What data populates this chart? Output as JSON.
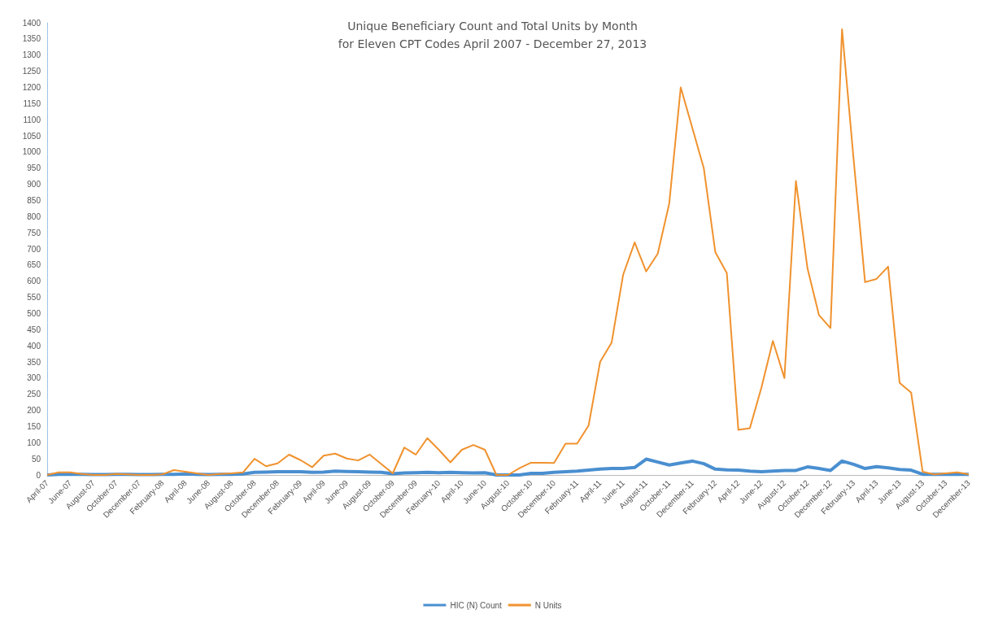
{
  "chart_data": {
    "type": "line",
    "title": "Unique Beneficiary Count and Total Units by Month\nfor Eleven CPT Codes April 2007 - December 27, 2013",
    "categories": [
      "April-07",
      null,
      "June-07",
      null,
      "August-07",
      null,
      "October-07",
      null,
      "December-07",
      null,
      "February-08",
      null,
      "April-08",
      null,
      "June-08",
      null,
      "August-08",
      null,
      "October-08",
      null,
      "December-08",
      null,
      "February-09",
      null,
      "April-09",
      null,
      "June-09",
      null,
      "August-09",
      null,
      "October-09",
      null,
      "December-09",
      null,
      "February-10",
      null,
      "April-10",
      null,
      "June-10",
      null,
      "August-10",
      null,
      "October-10",
      null,
      "December-10",
      null,
      "February-11",
      null,
      "April-11",
      null,
      "June-11",
      null,
      "August-11",
      null,
      "October-11",
      null,
      "December-11",
      null,
      "February-12",
      null,
      "April-12",
      null,
      "June-12",
      null,
      "August-12",
      null,
      "October-12",
      null,
      "December-12",
      null,
      "February-13",
      null,
      "April-13",
      null,
      "June-13",
      null,
      "August-13",
      null,
      "October-13",
      null,
      "December-13"
    ],
    "series": [
      {
        "name": "HIC (N) Count",
        "color": "#4a8fd0",
        "values": [
          0,
          2,
          2,
          2,
          1,
          1,
          2,
          2,
          1,
          1,
          2,
          2,
          3,
          2,
          1,
          2,
          2,
          3,
          8,
          9,
          10,
          10,
          10,
          8,
          9,
          12,
          11,
          10,
          9,
          8,
          4,
          6,
          7,
          8,
          7,
          8,
          7,
          6,
          7,
          0,
          0,
          0,
          5,
          5,
          8,
          10,
          12,
          15,
          18,
          20,
          20,
          23,
          49,
          40,
          31,
          37,
          43,
          35,
          18,
          16,
          15,
          12,
          10,
          12,
          14,
          14,
          25,
          20,
          14,
          43,
          33,
          20,
          26,
          22,
          17,
          15,
          2,
          2,
          2,
          2,
          2
        ]
      },
      {
        "name": "N Units",
        "color": "#f0922e",
        "values": [
          0,
          8,
          8,
          3,
          0,
          0,
          3,
          2,
          0,
          0,
          2,
          15,
          10,
          5,
          0,
          3,
          5,
          8,
          50,
          27,
          36,
          63,
          46,
          24,
          60,
          66,
          51,
          45,
          63,
          34,
          5,
          85,
          63,
          114,
          78,
          39,
          78,
          93,
          78,
          0,
          0,
          21,
          38,
          38,
          37,
          97,
          97,
          153,
          350,
          410,
          620,
          720,
          630,
          685,
          840,
          1200,
          1075,
          950,
          690,
          625,
          140,
          145,
          270,
          415,
          300,
          910,
          640,
          495,
          455,
          1380,
          980,
          597,
          607,
          645,
          285,
          255,
          10,
          2,
          5,
          8,
          2
        ]
      }
    ],
    "ylim": [
      0,
      1400
    ],
    "yticks": [
      0,
      50,
      100,
      150,
      200,
      250,
      300,
      350,
      400,
      450,
      500,
      550,
      600,
      650,
      700,
      750,
      800,
      850,
      900,
      950,
      1000,
      1050,
      1100,
      1150,
      1200,
      1250,
      1300,
      1350,
      1400
    ],
    "grid": false,
    "legend": "bottom",
    "marker": "none"
  }
}
